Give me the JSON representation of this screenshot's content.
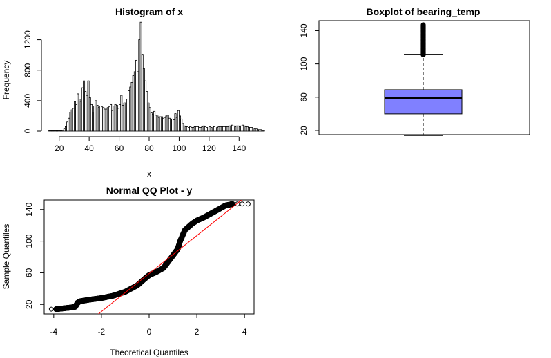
{
  "chart_data": [
    {
      "type": "bar",
      "title": "Histogram of x",
      "xlabel": "x",
      "ylabel": "Frequency",
      "xlim": [
        10,
        150
      ],
      "ylim": [
        0,
        1450
      ],
      "xticks": [
        20,
        40,
        60,
        80,
        100,
        120,
        140
      ],
      "yticks": [
        0,
        400,
        800,
        1200
      ],
      "bin_start": 13,
      "bin_width": 1,
      "values": [
        5,
        5,
        5,
        5,
        5,
        5,
        5,
        5,
        5,
        10,
        30,
        60,
        120,
        170,
        250,
        280,
        300,
        390,
        350,
        490,
        420,
        390,
        570,
        660,
        520,
        470,
        660,
        440,
        350,
        250,
        330,
        400,
        340,
        310,
        330,
        320,
        310,
        290,
        290,
        310,
        320,
        350,
        270,
        330,
        350,
        340,
        300,
        350,
        470,
        340,
        370,
        370,
        420,
        530,
        580,
        640,
        730,
        780,
        930,
        780,
        1200,
        1430,
        1000,
        820,
        660,
        520,
        370,
        310,
        240,
        220,
        260,
        210,
        200,
        180,
        190,
        190,
        170,
        180,
        200,
        210,
        170,
        160,
        160,
        150,
        230,
        180,
        270,
        200,
        160,
        100,
        70,
        60,
        60,
        50,
        60,
        50,
        50,
        60,
        60,
        60,
        50,
        50,
        60,
        70,
        60,
        50,
        40,
        60,
        50,
        40,
        60,
        40,
        50,
        60,
        60,
        60,
        60,
        60,
        60,
        60,
        70,
        70,
        80,
        70,
        60,
        70,
        70,
        60,
        70,
        80,
        70,
        60,
        60,
        50,
        50,
        50,
        40,
        30,
        30,
        20,
        20,
        20,
        10,
        10
      ]
    },
    {
      "type": "boxplot",
      "title": "Boxplot of bearing_temp",
      "ylim": [
        15,
        152
      ],
      "yticks": [
        20,
        60,
        100,
        140
      ],
      "min": 14,
      "q1": 40,
      "median": 59,
      "q3": 69,
      "max": 111,
      "outliers_from": 111,
      "outliers_to": 147,
      "box_color": "#8080ff"
    },
    {
      "type": "scatter",
      "title": "Normal QQ Plot - y",
      "xlabel": "Theoretical Quantiles",
      "ylabel": "Sample Quantiles",
      "xlim": [
        -4.4,
        4.4
      ],
      "ylim": [
        8,
        152
      ],
      "xticks": [
        -4,
        -2,
        0,
        2,
        4
      ],
      "yticks": [
        20,
        60,
        100,
        140
      ],
      "curve_x": [
        -3.9,
        -3.6,
        -3.3,
        -3.1,
        -3.0,
        -2.9,
        -2.5,
        -2.0,
        -1.5,
        -1.0,
        -0.5,
        -0.2,
        0.0,
        0.3,
        0.6,
        0.8,
        1.0,
        1.2,
        1.3,
        1.5,
        1.8,
        2.0,
        2.3,
        2.6,
        2.9,
        3.2,
        3.5
      ],
      "curve_y": [
        14,
        15,
        16,
        17,
        22,
        24,
        26,
        28,
        31,
        36,
        44,
        52,
        57,
        61,
        66,
        74,
        82,
        90,
        100,
        114,
        122,
        126,
        130,
        135,
        140,
        145,
        147
      ],
      "sparse_points": [
        [
          -4.1,
          14
        ],
        [
          -3.8,
          14
        ],
        [
          -3.7,
          15
        ],
        [
          3.7,
          147
        ],
        [
          3.9,
          147
        ],
        [
          4.15,
          147
        ]
      ],
      "reference_line": {
        "slope": 24.0,
        "intercept": 59.0,
        "color": "#ff0000"
      }
    }
  ]
}
